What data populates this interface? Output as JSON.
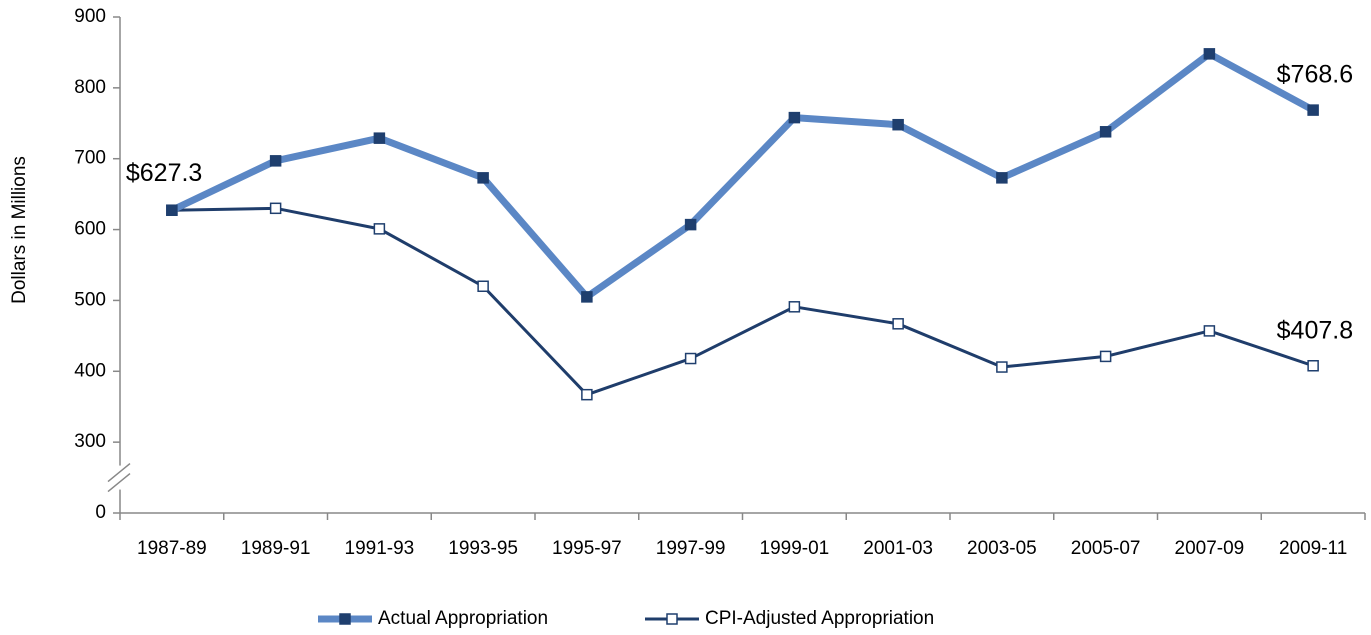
{
  "chart_data": {
    "type": "line",
    "y_label": "Dollars in Millions",
    "categories": [
      "1987-89",
      "1989-91",
      "1991-93",
      "1993-95",
      "1995-97",
      "1997-99",
      "1999-01",
      "2001-03",
      "2003-05",
      "2005-07",
      "2007-09",
      "2009-11"
    ],
    "series": [
      {
        "name": "Actual Appropriation",
        "color": "#5b87c5",
        "marker_color": "#1f3f6e",
        "values": [
          627.3,
          697,
          729,
          673,
          505,
          607,
          758,
          748,
          673,
          738,
          848,
          768.6
        ],
        "value_labels": [
          "$627.3",
          null,
          null,
          null,
          null,
          null,
          null,
          null,
          null,
          null,
          null,
          "$768.6"
        ]
      },
      {
        "name": "CPI-Adjusted Appropriation",
        "color": "#1f3d6b",
        "marker_color": "#ffffff",
        "values": [
          627.3,
          630,
          601,
          520,
          367,
          418,
          491,
          467,
          406,
          421,
          457,
          407.8
        ],
        "value_labels": [
          null,
          null,
          null,
          null,
          null,
          null,
          null,
          null,
          null,
          null,
          null,
          "$407.8"
        ]
      }
    ],
    "ylim": [
      0,
      900
    ],
    "yticks": [
      0,
      300,
      400,
      500,
      600,
      700,
      800,
      900
    ],
    "axis_break": true,
    "grid": false,
    "legend": "bottom"
  }
}
